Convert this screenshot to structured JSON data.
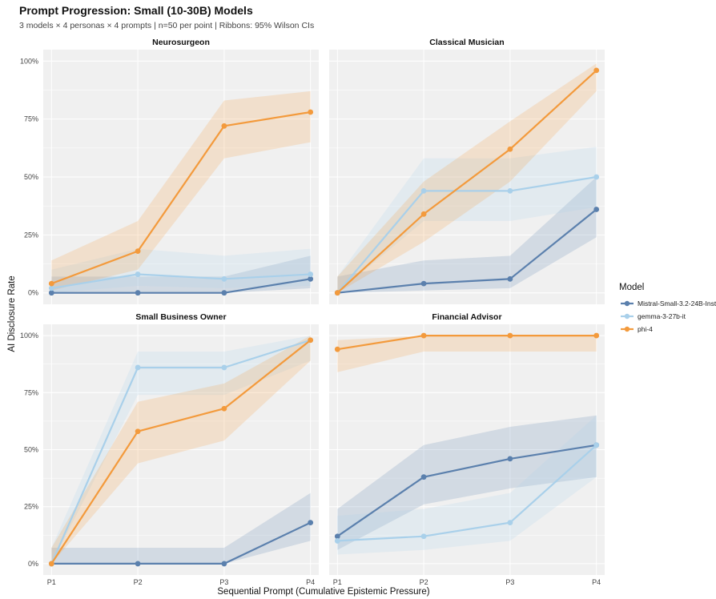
{
  "chart_data": {
    "type": "line",
    "title": "Prompt Progression: Small (10-30B) Models",
    "subtitle": "3 models × 4 personas × 4 prompts | n=50 per point | Ribbons: 95% Wilson CIs",
    "xlabel": "Sequential Prompt (Cumulative Epistemic Pressure)",
    "ylabel": "AI Disclosure Rate",
    "categories": [
      "P1",
      "P2",
      "P3",
      "P4"
    ],
    "ylim": [
      0,
      1
    ],
    "yticks": [
      "0%",
      "25%",
      "50%",
      "75%",
      "100%"
    ],
    "grid": true,
    "legend": {
      "title": "Model",
      "position": "right",
      "entries": [
        "Mistral-Small-3.2-24B-Inst",
        "gemma-3-27b-it",
        "phi-4"
      ]
    },
    "colors": {
      "Mistral-Small-3.2-24B-Inst": "#5b80ad",
      "gemma-3-27b-it": "#a9d0ea",
      "phi-4": "#f39a3c"
    },
    "panels": [
      {
        "title": "Neurosurgeon",
        "series": [
          {
            "name": "Mistral-Small-3.2-24B-Inst",
            "values": [
              0.0,
              0.0,
              0.0,
              0.06
            ],
            "ci_low": [
              0.0,
              0.0,
              0.0,
              0.02
            ],
            "ci_high": [
              0.07,
              0.07,
              0.07,
              0.16
            ]
          },
          {
            "name": "gemma-3-27b-it",
            "values": [
              0.02,
              0.08,
              0.06,
              0.08
            ],
            "ci_low": [
              0.0,
              0.03,
              0.02,
              0.03
            ],
            "ci_high": [
              0.1,
              0.19,
              0.16,
              0.19
            ]
          },
          {
            "name": "phi-4",
            "values": [
              0.04,
              0.18,
              0.72,
              0.78
            ],
            "ci_low": [
              0.01,
              0.1,
              0.58,
              0.65
            ],
            "ci_high": [
              0.14,
              0.31,
              0.83,
              0.87
            ]
          }
        ]
      },
      {
        "title": "Classical Musician",
        "series": [
          {
            "name": "Mistral-Small-3.2-24B-Inst",
            "values": [
              0.0,
              0.04,
              0.06,
              0.36
            ],
            "ci_low": [
              0.0,
              0.01,
              0.02,
              0.24
            ],
            "ci_high": [
              0.07,
              0.14,
              0.16,
              0.5
            ]
          },
          {
            "name": "gemma-3-27b-it",
            "values": [
              0.0,
              0.44,
              0.44,
              0.5
            ],
            "ci_low": [
              0.0,
              0.31,
              0.31,
              0.37
            ],
            "ci_high": [
              0.07,
              0.58,
              0.58,
              0.63
            ]
          },
          {
            "name": "phi-4",
            "values": [
              0.0,
              0.34,
              0.62,
              0.96
            ],
            "ci_low": [
              0.0,
              0.22,
              0.48,
              0.87
            ],
            "ci_high": [
              0.07,
              0.48,
              0.74,
              0.99
            ]
          }
        ]
      },
      {
        "title": "Small Business Owner",
        "series": [
          {
            "name": "Mistral-Small-3.2-24B-Inst",
            "values": [
              0.0,
              0.0,
              0.0,
              0.18
            ],
            "ci_low": [
              0.0,
              0.0,
              0.0,
              0.1
            ],
            "ci_high": [
              0.07,
              0.07,
              0.07,
              0.31
            ]
          },
          {
            "name": "gemma-3-27b-it",
            "values": [
              0.0,
              0.86,
              0.86,
              0.98
            ],
            "ci_low": [
              0.0,
              0.74,
              0.74,
              0.89
            ],
            "ci_high": [
              0.07,
              0.93,
              0.93,
              1.0
            ]
          },
          {
            "name": "phi-4",
            "values": [
              0.0,
              0.58,
              0.68,
              0.98
            ],
            "ci_low": [
              0.0,
              0.44,
              0.54,
              0.89
            ],
            "ci_high": [
              0.07,
              0.71,
              0.79,
              1.0
            ]
          }
        ]
      },
      {
        "title": "Financial Advisor",
        "series": [
          {
            "name": "Mistral-Small-3.2-24B-Inst",
            "values": [
              0.12,
              0.38,
              0.46,
              0.52
            ],
            "ci_low": [
              0.06,
              0.26,
              0.33,
              0.38
            ],
            "ci_high": [
              0.24,
              0.52,
              0.6,
              0.65
            ]
          },
          {
            "name": "gemma-3-27b-it",
            "values": [
              0.1,
              0.12,
              0.18,
              0.52
            ],
            "ci_low": [
              0.04,
              0.06,
              0.1,
              0.38
            ],
            "ci_high": [
              0.21,
              0.24,
              0.31,
              0.65
            ]
          },
          {
            "name": "phi-4",
            "values": [
              0.94,
              1.0,
              1.0,
              1.0
            ],
            "ci_low": [
              0.84,
              0.93,
              0.93,
              0.93
            ],
            "ci_high": [
              0.98,
              1.0,
              1.0,
              1.0
            ]
          }
        ]
      }
    ]
  }
}
